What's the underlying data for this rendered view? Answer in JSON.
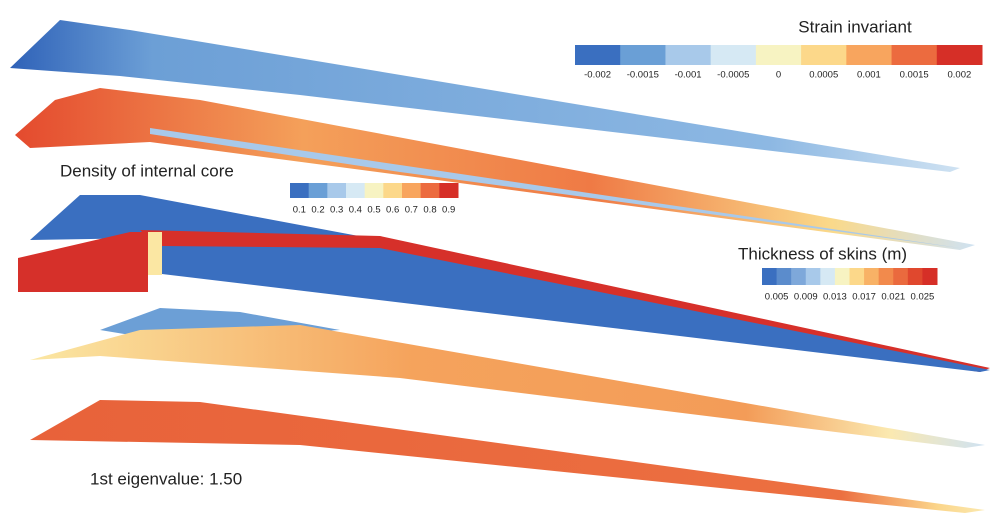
{
  "legends": [
    {
      "title": "Strain invariant",
      "ticks": [
        "-0.002",
        "-0.0015",
        "-0.001",
        "-0.0005",
        "0",
        "0.0005",
        "0.001",
        "0.0015",
        "0.002"
      ]
    },
    {
      "title": "Density of internal core",
      "ticks": [
        "0.1",
        "0.2",
        "0.3",
        "0.4",
        "0.5",
        "0.6",
        "0.7",
        "0.8",
        "0.9"
      ]
    },
    {
      "title": "Thickness of skins (m)",
      "ticks": [
        "0.005",
        "0.009",
        "0.013",
        "0.017",
        "0.021",
        "0.025"
      ]
    }
  ],
  "annotation": "1st eigenvalue: 1.50"
}
